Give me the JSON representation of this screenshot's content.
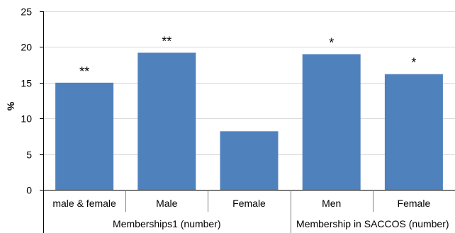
{
  "chart_data": {
    "type": "bar",
    "ylabel": "%",
    "ylim": [
      0,
      25
    ],
    "yticks": [
      0,
      5,
      10,
      15,
      20,
      25
    ],
    "grid": true,
    "bar_color": "#4f81bd",
    "categories": [
      "male & female",
      "Male",
      "Female",
      "Men",
      "Female"
    ],
    "values": [
      15.0,
      19.2,
      8.2,
      19.0,
      16.2
    ],
    "annotations": [
      "**",
      "**",
      "",
      "*",
      "*"
    ],
    "groups": [
      {
        "label": "Memberships1 (number)",
        "categories": [
          0,
          1,
          2
        ]
      },
      {
        "label": "Membership in SACCOS (number)",
        "categories": [
          3,
          4
        ]
      }
    ]
  }
}
